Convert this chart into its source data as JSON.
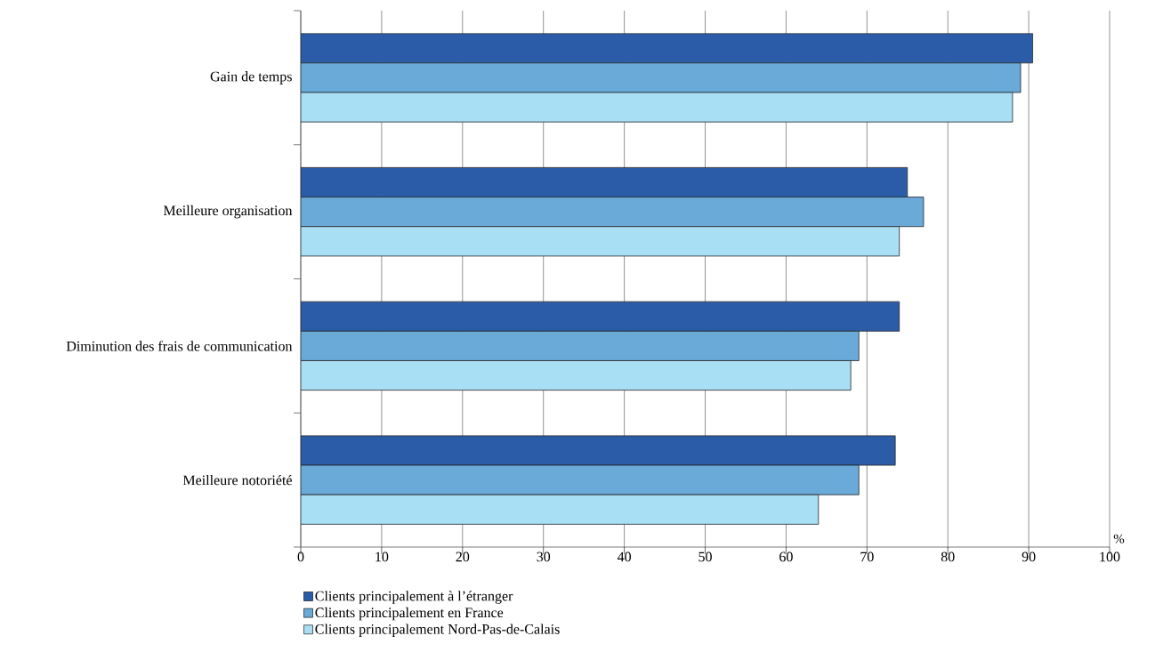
{
  "chart_data": {
    "type": "bar",
    "orientation": "horizontal",
    "xlabel": "%",
    "categories": [
      "Gain de temps",
      "Meilleure organisation",
      "Diminution des frais de communication",
      "Meilleure notoriété"
    ],
    "series": [
      {
        "name": "Clients principalement à l’étranger",
        "color": "#2a5ca8",
        "values": [
          90.5,
          75,
          74,
          73.5
        ]
      },
      {
        "name": "Clients principalement en France",
        "color": "#6aaad9",
        "values": [
          89,
          77,
          69,
          69
        ]
      },
      {
        "name": "Clients principalement Nord-Pas-de-Calais",
        "color": "#a9dff5",
        "values": [
          88,
          74,
          68,
          64
        ]
      }
    ],
    "xlim": [
      0,
      100
    ],
    "xticks": [
      0,
      10,
      20,
      30,
      40,
      50,
      60,
      70,
      80,
      90,
      100
    ],
    "grid": "x",
    "legend": "bottom"
  }
}
